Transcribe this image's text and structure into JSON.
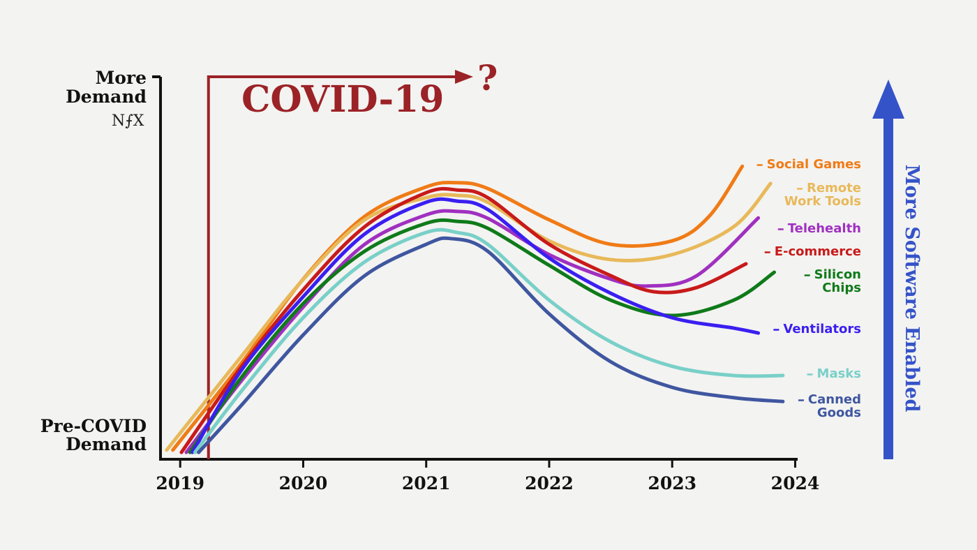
{
  "chart_data": {
    "type": "line",
    "logo": "N⨍X",
    "event": {
      "label": "COVID-19",
      "x": 2019.23,
      "arrow_label": "?"
    },
    "side_arrow_label": "More Software Enabled",
    "side_arrow_color": "#3553c8",
    "xlim": [
      2018.84,
      2024.02
    ],
    "xticks": [
      2019,
      2020,
      2021,
      2022,
      2023,
      2024
    ],
    "ylim": [
      0,
      100
    ],
    "yticks": [
      {
        "value": 97,
        "label": "More\nDemand"
      },
      {
        "value": 6,
        "label": "Pre-COVID\nDemand"
      }
    ],
    "series": [
      {
        "name": "Social Games",
        "color": "#f07b16",
        "x": [
          2018.94,
          2019.5,
          2020,
          2020.5,
          2021,
          2021.25,
          2021.5,
          2022,
          2022.5,
          2023,
          2023.3,
          2023.57
        ],
        "values": [
          2.4,
          25.2,
          47.1,
          63.5,
          71.2,
          72.3,
          70.8,
          62.6,
          56.2,
          57.1,
          63.5,
          76.6
        ]
      },
      {
        "name": "Remote\nWork Tools",
        "color": "#e8b95a",
        "x": [
          2018.89,
          2019.5,
          2020,
          2020.5,
          2021,
          2021.25,
          2021.5,
          2022,
          2022.5,
          2023,
          2023.5,
          2023.8
        ],
        "values": [
          2.4,
          27,
          47,
          62.6,
          68.4,
          69,
          67.2,
          57.1,
          52.2,
          53.5,
          60.8,
          72.1
        ]
      },
      {
        "name": "Telehealth",
        "color": "#a030c0",
        "x": [
          2019.05,
          2019.5,
          2020,
          2020.5,
          2021,
          2021.25,
          2021.5,
          2022,
          2022.5,
          2022.8,
          2023.2,
          2023.7
        ],
        "values": [
          1.8,
          20.6,
          39.8,
          56.2,
          63.9,
          64.8,
          63,
          53.5,
          47.1,
          45.3,
          48,
          63.1
        ]
      },
      {
        "name": "E-commerce",
        "color": "#c81a1a",
        "x": [
          2019.01,
          2019.5,
          2020,
          2020.5,
          2021,
          2021.25,
          2021.5,
          2022,
          2022.5,
          2022.85,
          2023.2,
          2023.6
        ],
        "values": [
          1.8,
          24.3,
          44.3,
          60.8,
          69.7,
          70.4,
          68.4,
          56.2,
          48,
          43.8,
          44.9,
          51.1
        ]
      },
      {
        "name": "Silicon\nChips",
        "color": "#0f7a1a",
        "x": [
          2019.08,
          2019.5,
          2020,
          2020.5,
          2021,
          2021.25,
          2021.5,
          2022,
          2022.5,
          2023,
          2023.5,
          2023.83
        ],
        "values": [
          1.8,
          21.5,
          40.7,
          54.4,
          61.7,
          62.2,
          60.4,
          50.7,
          41.6,
          37.6,
          41.6,
          48.9
        ]
      },
      {
        "name": "Ventilators",
        "color": "#3a1ff0",
        "x": [
          2019.1,
          2019.5,
          2020,
          2020.5,
          2021,
          2021.25,
          2021.5,
          2022,
          2022.5,
          2023,
          2023.5,
          2023.7
        ],
        "values": [
          1.8,
          23.4,
          42.5,
          58.9,
          67.2,
          67.5,
          65.3,
          52.6,
          43.4,
          37,
          34.3,
          33
        ]
      },
      {
        "name": "Masks",
        "color": "#79d0c8",
        "x": [
          2019.12,
          2019.5,
          2020,
          2020.5,
          2021,
          2021.25,
          2021.5,
          2022,
          2022.5,
          2023,
          2023.5,
          2023.9
        ],
        "values": [
          1.8,
          17.9,
          37,
          51.6,
          59.3,
          59.3,
          56.2,
          41.6,
          30.7,
          24.3,
          21.9,
          21.9
        ]
      },
      {
        "name": "Canned\nGoods",
        "color": "#3f56a0",
        "x": [
          2019.15,
          2019.5,
          2020,
          2020.5,
          2021,
          2021.2,
          2021.5,
          2022,
          2022.5,
          2023,
          2023.5,
          2023.9
        ],
        "values": [
          1.8,
          14.2,
          32.5,
          48,
          56.2,
          57.7,
          54.4,
          38,
          25.5,
          18.8,
          16.1,
          15.1
        ]
      }
    ]
  }
}
